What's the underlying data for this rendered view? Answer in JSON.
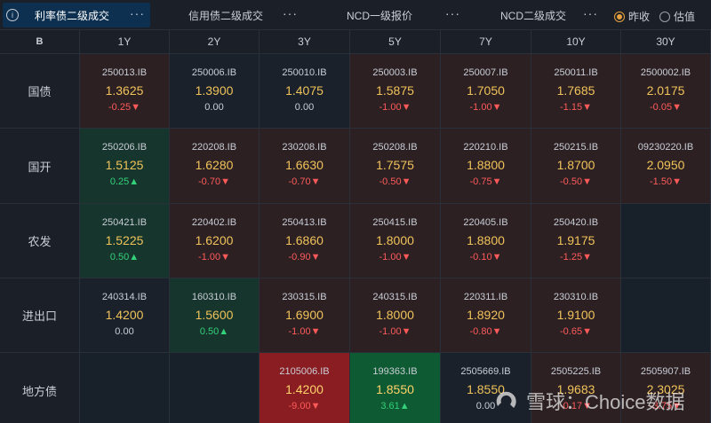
{
  "tabs": [
    {
      "label": "利率债二级成交",
      "more": "···"
    },
    {
      "label": "信用债二级成交",
      "more": "···"
    },
    {
      "label": "NCD一级报价",
      "more": "···"
    },
    {
      "label": "NCD二级成交",
      "more": "···"
    }
  ],
  "radios": [
    {
      "label": "昨收",
      "checked": true
    },
    {
      "label": "估值",
      "checked": false
    }
  ],
  "corner_label": "B",
  "columns": [
    "1Y",
    "2Y",
    "3Y",
    "5Y",
    "7Y",
    "10Y",
    "30Y"
  ],
  "rows": [
    {
      "label": "国债",
      "cells": [
        {
          "code": "250013.IB",
          "yield": "1.3625",
          "change": "-0.25▼"
        },
        {
          "code": "250006.IB",
          "yield": "1.3900",
          "change": "0.00"
        },
        {
          "code": "250010.IB",
          "yield": "1.4075",
          "change": "0.00"
        },
        {
          "code": "250003.IB",
          "yield": "1.5875",
          "change": "-1.00▼"
        },
        {
          "code": "250007.IB",
          "yield": "1.7050",
          "change": "-1.00▼"
        },
        {
          "code": "250011.IB",
          "yield": "1.7685",
          "change": "-1.15▼"
        },
        {
          "code": "2500002.IB",
          "yield": "2.0175",
          "change": "-0.05▼"
        }
      ]
    },
    {
      "label": "国开",
      "cells": [
        {
          "code": "250206.IB",
          "yield": "1.5125",
          "change": "0.25▲"
        },
        {
          "code": "220208.IB",
          "yield": "1.6280",
          "change": "-0.70▼"
        },
        {
          "code": "230208.IB",
          "yield": "1.6630",
          "change": "-0.70▼"
        },
        {
          "code": "250208.IB",
          "yield": "1.7575",
          "change": "-0.50▼"
        },
        {
          "code": "220210.IB",
          "yield": "1.8800",
          "change": "-0.75▼"
        },
        {
          "code": "250215.IB",
          "yield": "1.8700",
          "change": "-0.50▼"
        },
        {
          "code": "09230220.IB",
          "yield": "2.0950",
          "change": "-1.50▼"
        }
      ]
    },
    {
      "label": "农发",
      "cells": [
        {
          "code": "250421.IB",
          "yield": "1.5225",
          "change": "0.50▲"
        },
        {
          "code": "220402.IB",
          "yield": "1.6200",
          "change": "-1.00▼"
        },
        {
          "code": "250413.IB",
          "yield": "1.6860",
          "change": "-0.90▼"
        },
        {
          "code": "250415.IB",
          "yield": "1.8000",
          "change": "-1.00▼"
        },
        {
          "code": "220405.IB",
          "yield": "1.8800",
          "change": "-0.10▼"
        },
        {
          "code": "250420.IB",
          "yield": "1.9175",
          "change": "-1.25▼"
        },
        null
      ]
    },
    {
      "label": "进出口",
      "cells": [
        {
          "code": "240314.IB",
          "yield": "1.4200",
          "change": "0.00"
        },
        {
          "code": "160310.IB",
          "yield": "1.5600",
          "change": "0.50▲"
        },
        {
          "code": "230315.IB",
          "yield": "1.6900",
          "change": "-1.00▼"
        },
        {
          "code": "240315.IB",
          "yield": "1.8000",
          "change": "-1.00▼"
        },
        {
          "code": "220311.IB",
          "yield": "1.8920",
          "change": "-0.80▼"
        },
        {
          "code": "230310.IB",
          "yield": "1.9100",
          "change": "-0.65▼"
        },
        null
      ]
    },
    {
      "label": "地方债",
      "cells": [
        null,
        null,
        {
          "code": "2105006.IB",
          "yield": "1.4200",
          "change": "-9.00▼"
        },
        {
          "code": "199363.IB",
          "yield": "1.8550",
          "change": "3.61▲"
        },
        {
          "code": "2505669.IB",
          "yield": "1.8550",
          "change": "0.00"
        },
        {
          "code": "2505225.IB",
          "yield": "1.9683",
          "change": "-0.17▼"
        },
        {
          "code": "2505907.IB",
          "yield": "2.3025",
          "change": "-3.75▼"
        }
      ]
    }
  ],
  "cell_styles": [
    [
      "red",
      "neutral",
      "neutral",
      "red",
      "red",
      "red",
      "red"
    ],
    [
      "green",
      "red",
      "red",
      "red",
      "red",
      "red",
      "red"
    ],
    [
      "green",
      "red",
      "red",
      "red",
      "red",
      "red",
      "empty"
    ],
    [
      "neutral",
      "green",
      "red",
      "red",
      "red",
      "red",
      "empty"
    ],
    [
      "empty",
      "empty",
      "strongred",
      "stronggreen",
      "neutral",
      "red",
      "red"
    ]
  ],
  "watermark": {
    "text": "雪球：Choice数据",
    "icon": "snowball-logo-icon"
  }
}
